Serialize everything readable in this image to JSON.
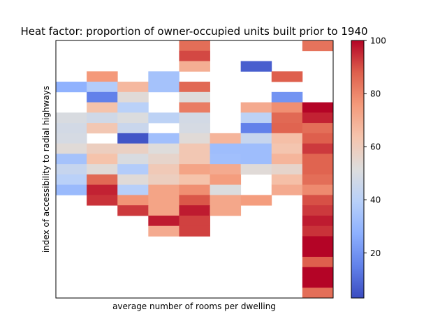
{
  "chart_data": {
    "type": "heatmap",
    "title": "Heat factor: proportion of owner-occupied units built prior to 1940",
    "xlabel": "average number of rooms per dwelling",
    "ylabel": "index of accessibility to radial highways",
    "x_ticks_shown": false,
    "y_ticks_shown": false,
    "colormap": "coolwarm",
    "colorbar": {
      "min": 3,
      "max": 100,
      "ticks": [
        20,
        40,
        60,
        80,
        100
      ]
    },
    "n_cols": 9,
    "n_rows": 25,
    "grid": [
      [
        null,
        null,
        null,
        null,
        85,
        null,
        null,
        null,
        84
      ],
      [
        null,
        null,
        null,
        null,
        91,
        null,
        null,
        null,
        null
      ],
      [
        null,
        null,
        null,
        null,
        70,
        null,
        7,
        null,
        null
      ],
      [
        null,
        76,
        null,
        34,
        null,
        null,
        null,
        88,
        null
      ],
      [
        28,
        38,
        67,
        34,
        86,
        null,
        null,
        null,
        null
      ],
      [
        null,
        15,
        53,
        null,
        52,
        null,
        null,
        20,
        null
      ],
      [
        null,
        64,
        40,
        null,
        82,
        null,
        71,
        78,
        100
      ],
      [
        50,
        47,
        51,
        41,
        48,
        null,
        41,
        86,
        96
      ],
      [
        48,
        62,
        45,
        null,
        49,
        null,
        15,
        87,
        85
      ],
      [
        49,
        null,
        5,
        33,
        53,
        68,
        44,
        65,
        88
      ],
      [
        53,
        59,
        58,
        52,
        62,
        32,
        32,
        63,
        93
      ],
      [
        34,
        64,
        50,
        56,
        62,
        33,
        32,
        68,
        87
      ],
      [
        44,
        53,
        38,
        61,
        73,
        71,
        53,
        56,
        87
      ],
      [
        40,
        86,
        53,
        59,
        64,
        75,
        null,
        65,
        85
      ],
      [
        31,
        96,
        39,
        73,
        78,
        51,
        null,
        71,
        79
      ],
      [
        null,
        94,
        77,
        73,
        89,
        72,
        75,
        null,
        90
      ],
      [
        null,
        null,
        93,
        73,
        97,
        72,
        null,
        null,
        93
      ],
      [
        null,
        null,
        null,
        97,
        92,
        null,
        null,
        null,
        97
      ],
      [
        null,
        null,
        null,
        71,
        92,
        null,
        null,
        null,
        94
      ],
      [
        null,
        null,
        null,
        null,
        null,
        null,
        null,
        null,
        100
      ],
      [
        null,
        null,
        null,
        null,
        null,
        null,
        null,
        null,
        100
      ],
      [
        null,
        null,
        null,
        null,
        null,
        null,
        null,
        null,
        88
      ],
      [
        null,
        null,
        null,
        null,
        null,
        null,
        null,
        null,
        100
      ],
      [
        null,
        null,
        null,
        null,
        null,
        null,
        null,
        null,
        100
      ],
      [
        null,
        null,
        null,
        null,
        null,
        null,
        null,
        null,
        85
      ]
    ]
  }
}
